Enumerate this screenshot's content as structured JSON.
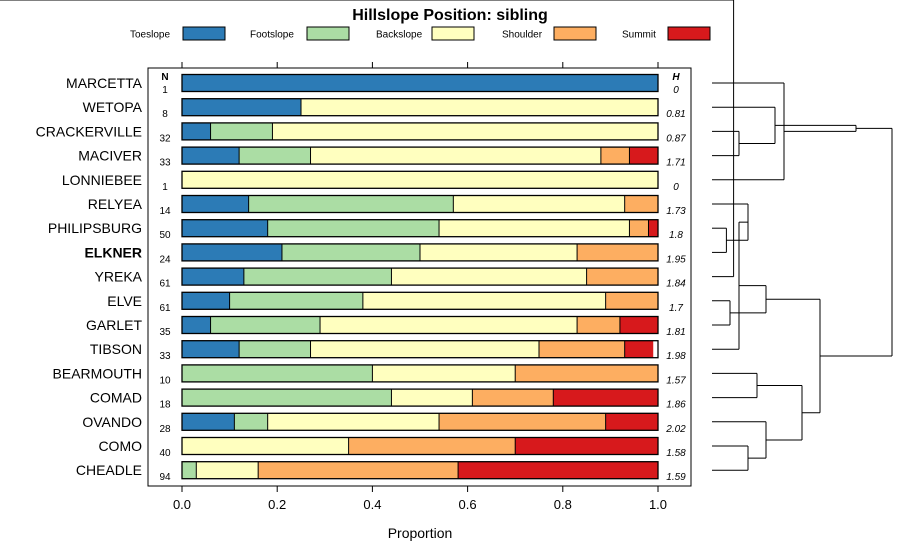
{
  "chart_data": {
    "type": "bar",
    "stacked": true,
    "orientation": "horizontal",
    "title": "Hillslope Position: sibling",
    "xlabel": "Proportion",
    "xlim": [
      0,
      1
    ],
    "xticks": [
      "0.0",
      "0.2",
      "0.4",
      "0.6",
      "0.8",
      "1.0"
    ],
    "n_header": "N",
    "h_header": "H",
    "highlight": "ELKNER",
    "legend": [
      {
        "name": "Toeslope",
        "color": "#2c7bb6"
      },
      {
        "name": "Footslope",
        "color": "#abdda4"
      },
      {
        "name": "Backslope",
        "color": "#ffffbf"
      },
      {
        "name": "Shoulder",
        "color": "#fdae61"
      },
      {
        "name": "Summit",
        "color": "#d7191c"
      }
    ],
    "categories": [
      "MARCETTA",
      "WETOPA",
      "CRACKERVILLE",
      "MACIVER",
      "LONNIEBEE",
      "RELYEA",
      "PHILIPSBURG",
      "ELKNER",
      "YREKA",
      "ELVE",
      "GARLET",
      "TIBSON",
      "BEARMOUTH",
      "COMAD",
      "OVANDO",
      "COMO",
      "CHEADLE"
    ],
    "n": [
      "1",
      "8",
      "32",
      "33",
      "1",
      "14",
      "50",
      "24",
      "61",
      "61",
      "35",
      "33",
      "10",
      "18",
      "28",
      "40",
      "94"
    ],
    "h": [
      "0",
      "0.81",
      "0.87",
      "1.71",
      "0",
      "1.73",
      "1.8",
      "1.95",
      "1.84",
      "1.7",
      "1.81",
      "1.98",
      "1.57",
      "1.86",
      "2.02",
      "1.58",
      "1.59"
    ],
    "series": [
      {
        "name": "Toeslope",
        "values": [
          1.0,
          0.25,
          0.06,
          0.12,
          0.0,
          0.14,
          0.18,
          0.21,
          0.13,
          0.1,
          0.06,
          0.12,
          0.0,
          0.0,
          0.11,
          0.0,
          0.0
        ]
      },
      {
        "name": "Footslope",
        "values": [
          0.0,
          0.0,
          0.13,
          0.15,
          0.0,
          0.43,
          0.36,
          0.29,
          0.31,
          0.28,
          0.23,
          0.15,
          0.4,
          0.44,
          0.07,
          0.0,
          0.03
        ]
      },
      {
        "name": "Backslope",
        "values": [
          0.0,
          0.75,
          0.81,
          0.61,
          1.0,
          0.36,
          0.4,
          0.33,
          0.41,
          0.51,
          0.54,
          0.48,
          0.3,
          0.17,
          0.36,
          0.35,
          0.13
        ]
      },
      {
        "name": "Shoulder",
        "values": [
          0.0,
          0.0,
          0.0,
          0.06,
          0.0,
          0.07,
          0.04,
          0.17,
          0.15,
          0.11,
          0.09,
          0.18,
          0.3,
          0.17,
          0.35,
          0.35,
          0.42
        ]
      },
      {
        "name": "Summit",
        "values": [
          0.0,
          0.0,
          0.0,
          0.06,
          0.0,
          0.0,
          0.02,
          0.0,
          0.0,
          0.0,
          0.08,
          0.06,
          0.0,
          0.22,
          0.11,
          0.3,
          0.42
        ]
      }
    ],
    "dendrogram": {
      "merges": [
        [
          2,
          3,
          0.15
        ],
        [
          1,
          17,
          0.35
        ],
        [
          0,
          4,
          0.4
        ],
        [
          6,
          7,
          0.08
        ],
        [
          8,
          21,
          0.12
        ],
        [
          9,
          10,
          0.1
        ],
        [
          20,
          5,
          0.2
        ],
        [
          11,
          23,
          0.15
        ],
        [
          22,
          24,
          0.3
        ],
        [
          15,
          16,
          0.2
        ],
        [
          12,
          13,
          0.25
        ],
        [
          14,
          26,
          0.3
        ],
        [
          27,
          28,
          0.5
        ],
        [
          25,
          29,
          0.6
        ],
        [
          19,
          18,
          0.8
        ],
        [
          30,
          31,
          1.0
        ]
      ]
    }
  }
}
